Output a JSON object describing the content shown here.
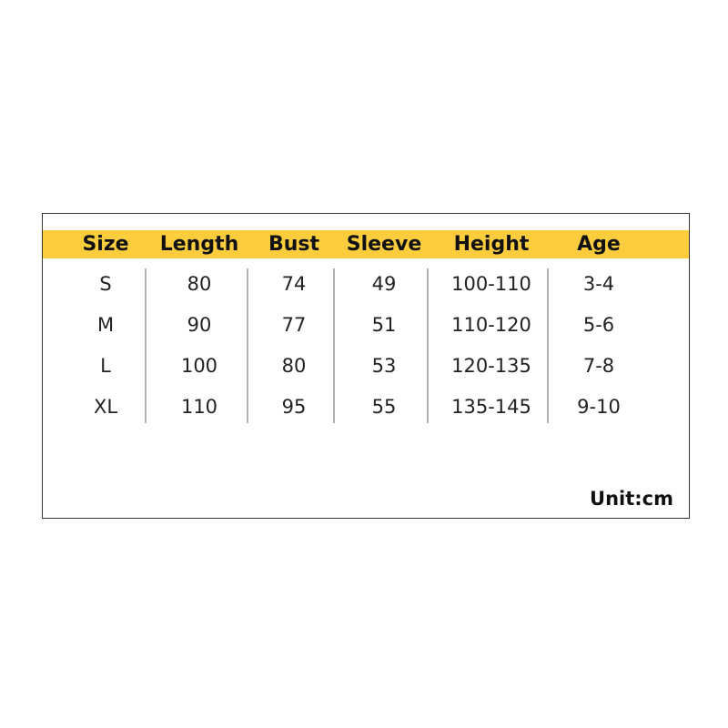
{
  "table": {
    "header": [
      "Size",
      "Length",
      "Bust",
      "Sleeve",
      "Height",
      "Age"
    ],
    "rows": [
      [
        "S",
        "80",
        "74",
        "49",
        "100-110",
        "3-4"
      ],
      [
        "M",
        "90",
        "77",
        "51",
        "110-120",
        "5-6"
      ],
      [
        "L",
        "100",
        "80",
        "53",
        "120-135",
        "7-8"
      ],
      [
        "XL",
        "110",
        "95",
        "55",
        "135-145",
        "9-10"
      ]
    ]
  },
  "unit": "Unit:cm"
}
